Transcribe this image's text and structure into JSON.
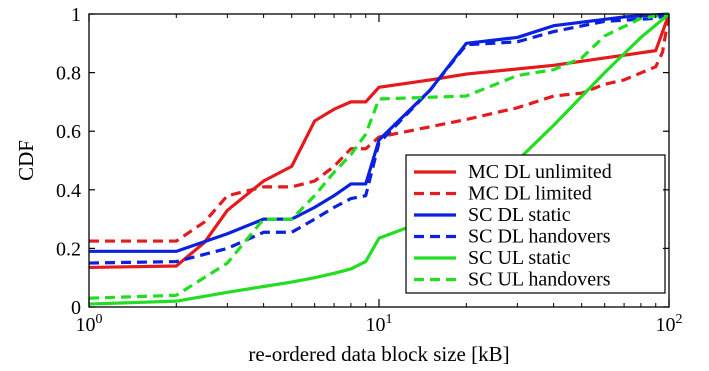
{
  "chart_data": {
    "type": "line",
    "xlabel": "re-ordered data block size [kB]",
    "ylabel": "CDF",
    "xscale": "log",
    "xlim": [
      1,
      100
    ],
    "ylim": [
      0,
      1
    ],
    "grid": false,
    "legend_position": "lower-right",
    "x_ticks": [
      {
        "value": 1,
        "base": "10",
        "exp": "0"
      },
      {
        "value": 10,
        "base": "10",
        "exp": "1"
      },
      {
        "value": 100,
        "base": "10",
        "exp": "2"
      }
    ],
    "y_ticks": [
      {
        "value": 0,
        "label": "0"
      },
      {
        "value": 0.2,
        "label": "0.2"
      },
      {
        "value": 0.4,
        "label": "0.4"
      },
      {
        "value": 0.6,
        "label": "0.6"
      },
      {
        "value": 0.8,
        "label": "0.8"
      },
      {
        "value": 1,
        "label": "1"
      }
    ],
    "series": [
      {
        "name": "MC DL unlimited",
        "color": "#e41a1c",
        "dash": "solid",
        "points": [
          [
            1,
            0.135
          ],
          [
            2,
            0.14
          ],
          [
            2.5,
            0.22
          ],
          [
            3,
            0.33
          ],
          [
            4,
            0.43
          ],
          [
            5,
            0.48
          ],
          [
            6,
            0.635
          ],
          [
            7,
            0.675
          ],
          [
            8,
            0.7
          ],
          [
            9,
            0.7
          ],
          [
            10,
            0.75
          ],
          [
            15,
            0.775
          ],
          [
            20,
            0.795
          ],
          [
            40,
            0.825
          ],
          [
            60,
            0.85
          ],
          [
            90,
            0.875
          ],
          [
            100,
            1.0
          ]
        ]
      },
      {
        "name": "MC DL limited",
        "color": "#e41a1c",
        "dash": "dashed",
        "points": [
          [
            1,
            0.225
          ],
          [
            2,
            0.225
          ],
          [
            2.5,
            0.29
          ],
          [
            3,
            0.38
          ],
          [
            4,
            0.41
          ],
          [
            5,
            0.41
          ],
          [
            6,
            0.43
          ],
          [
            7,
            0.48
          ],
          [
            8,
            0.54
          ],
          [
            9,
            0.54
          ],
          [
            10,
            0.58
          ],
          [
            20,
            0.64
          ],
          [
            30,
            0.68
          ],
          [
            40,
            0.72
          ],
          [
            50,
            0.73
          ],
          [
            60,
            0.76
          ],
          [
            70,
            0.775
          ],
          [
            90,
            0.82
          ],
          [
            95,
            0.87
          ],
          [
            100,
            1.0
          ]
        ]
      },
      {
        "name": "SC DL static",
        "color": "#0a22e0",
        "dash": "solid",
        "points": [
          [
            1,
            0.19
          ],
          [
            2,
            0.19
          ],
          [
            3,
            0.25
          ],
          [
            4,
            0.3
          ],
          [
            5,
            0.3
          ],
          [
            6,
            0.34
          ],
          [
            7,
            0.38
          ],
          [
            8,
            0.42
          ],
          [
            9,
            0.42
          ],
          [
            10,
            0.57
          ],
          [
            15,
            0.74
          ],
          [
            20,
            0.9
          ],
          [
            30,
            0.92
          ],
          [
            40,
            0.96
          ],
          [
            70,
            0.99
          ],
          [
            100,
            1.0
          ]
        ]
      },
      {
        "name": "SC DL handovers",
        "color": "#0a22e0",
        "dash": "dashed",
        "points": [
          [
            1,
            0.15
          ],
          [
            2,
            0.155
          ],
          [
            3,
            0.2
          ],
          [
            4,
            0.255
          ],
          [
            5,
            0.255
          ],
          [
            6,
            0.3
          ],
          [
            7,
            0.34
          ],
          [
            8,
            0.37
          ],
          [
            9,
            0.38
          ],
          [
            10,
            0.56
          ],
          [
            15,
            0.74
          ],
          [
            20,
            0.895
          ],
          [
            30,
            0.905
          ],
          [
            40,
            0.94
          ],
          [
            60,
            0.975
          ],
          [
            90,
            0.985
          ],
          [
            100,
            1.0
          ]
        ]
      },
      {
        "name": "SC UL static",
        "color": "#22dd22",
        "dash": "solid",
        "points": [
          [
            1,
            0.01
          ],
          [
            2,
            0.02
          ],
          [
            3,
            0.05
          ],
          [
            4,
            0.07
          ],
          [
            5,
            0.085
          ],
          [
            6,
            0.1
          ],
          [
            7,
            0.115
          ],
          [
            8,
            0.13
          ],
          [
            9,
            0.155
          ],
          [
            10,
            0.235
          ],
          [
            15,
            0.3
          ],
          [
            20,
            0.38
          ],
          [
            30,
            0.5
          ],
          [
            40,
            0.62
          ],
          [
            60,
            0.8
          ],
          [
            80,
            0.92
          ],
          [
            100,
            1.0
          ]
        ]
      },
      {
        "name": "SC UL handovers",
        "color": "#22dd22",
        "dash": "dashed",
        "points": [
          [
            1,
            0.03
          ],
          [
            2,
            0.04
          ],
          [
            3,
            0.15
          ],
          [
            4,
            0.3
          ],
          [
            5,
            0.3
          ],
          [
            6,
            0.38
          ],
          [
            7,
            0.46
          ],
          [
            8,
            0.52
          ],
          [
            9,
            0.59
          ],
          [
            10,
            0.71
          ],
          [
            20,
            0.72
          ],
          [
            30,
            0.79
          ],
          [
            40,
            0.81
          ],
          [
            50,
            0.85
          ],
          [
            60,
            0.925
          ],
          [
            80,
            0.985
          ],
          [
            100,
            1.0
          ]
        ]
      }
    ]
  }
}
